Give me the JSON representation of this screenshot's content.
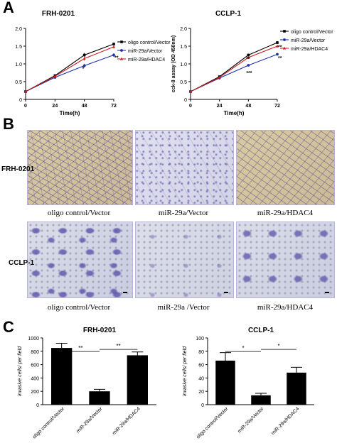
{
  "panels": {
    "a": {
      "letter": "A"
    },
    "b": {
      "letter": "B"
    },
    "c": {
      "letter": "C"
    }
  },
  "legend": {
    "items": [
      "oligo control/Vector",
      "miR-29a/Vector",
      "miR-29a/HDAC4"
    ],
    "colors": [
      "#000000",
      "#1a2fb0",
      "#c8201f"
    ]
  },
  "panel_b": {
    "row_labels": [
      "FRH-0201",
      "CCLP-1"
    ],
    "captions_row1": [
      "oligo control/Vector",
      "miR-29a/Vector",
      "miR-29a/HDAC4"
    ],
    "captions_row2": [
      "oligo control/Vector",
      "miR-29a /Vector",
      "miR-29a/HDAC4"
    ]
  },
  "chart_data": [
    {
      "type": "line",
      "title": "FRH-0201",
      "xlabel": "Time(h)",
      "ylabel": "",
      "x": [
        0,
        24,
        48,
        72
      ],
      "xticks": [
        "0",
        "24",
        "48",
        "72"
      ],
      "yticks": [
        "0",
        "0.5",
        "1.0",
        "1.5",
        "2.0"
      ],
      "ylim": [
        0,
        2.0
      ],
      "series": [
        {
          "name": "oligo control/Vector",
          "values": [
            0.22,
            0.67,
            1.25,
            1.56
          ],
          "errors": [
            0.02,
            0.04,
            0.06,
            0.04
          ]
        },
        {
          "name": "miR-29a/Vector",
          "values": [
            0.22,
            0.62,
            0.95,
            1.25
          ],
          "errors": [
            0.02,
            0.04,
            0.05,
            0.05
          ]
        },
        {
          "name": "miR-29a/HDAC4",
          "values": [
            0.22,
            0.65,
            1.15,
            1.48
          ],
          "errors": [
            0.02,
            0.04,
            0.06,
            0.05
          ]
        }
      ],
      "annotations": [
        {
          "x": 48,
          "y": 0.82,
          "text": "*"
        },
        {
          "x": 72,
          "y": 1.13,
          "text": "**"
        }
      ]
    },
    {
      "type": "line",
      "title": "CCLP-1",
      "xlabel": "Time(h)",
      "ylabel": "cck-8 assay (OD 450nm)",
      "x": [
        0,
        24,
        48,
        72
      ],
      "xticks": [
        "0",
        "24",
        "48",
        "72"
      ],
      "yticks": [
        "0",
        "0.5",
        "1.0",
        "1.5",
        "2.0"
      ],
      "ylim": [
        0,
        2.0
      ],
      "series": [
        {
          "name": "oligo control/Vector",
          "values": [
            0.22,
            0.64,
            1.25,
            1.6
          ],
          "errors": [
            0.02,
            0.03,
            0.04,
            0.04
          ]
        },
        {
          "name": "miR-29a/Vector",
          "values": [
            0.22,
            0.6,
            0.96,
            1.27
          ],
          "errors": [
            0.02,
            0.03,
            0.03,
            0.03
          ]
        },
        {
          "name": "miR-29a/HDAC4",
          "values": [
            0.22,
            0.62,
            1.18,
            1.5
          ],
          "errors": [
            0.02,
            0.03,
            0.04,
            0.04
          ]
        }
      ],
      "annotations": [
        {
          "x": 72,
          "y": 1.43,
          "text": "**"
        },
        {
          "x": 48,
          "y": 1.1,
          "text": "**"
        },
        {
          "x": 48,
          "y": 0.7,
          "text": "***"
        },
        {
          "x": 72,
          "y": 1.12,
          "text": "**"
        }
      ]
    },
    {
      "type": "bar",
      "title": "FRH-0201",
      "xlabel": "",
      "ylabel": "invasive cells/ per field",
      "categories": [
        "oligo control/Vector",
        "miR-29a/Vector",
        "miR-29a/HDAC4"
      ],
      "values": [
        850,
        200,
        740
      ],
      "errors": [
        70,
        30,
        50
      ],
      "yticks": [
        "0",
        "200",
        "400",
        "600",
        "800",
        "1000"
      ],
      "ylim": [
        0,
        1000
      ],
      "brackets": [
        {
          "from": 0,
          "to": 1,
          "text": "**"
        },
        {
          "from": 1,
          "to": 2,
          "text": "**"
        }
      ]
    },
    {
      "type": "bar",
      "title": "CCLP-1",
      "xlabel": "",
      "ylabel": "invasive cells/ per field",
      "categories": [
        "oligo control/Vector",
        "miR-29a/Vector",
        "miR-29a/HDAC4"
      ],
      "values": [
        66,
        14,
        48
      ],
      "errors": [
        12,
        3,
        8
      ],
      "yticks": [
        "0",
        "20",
        "40",
        "60",
        "80",
        "100"
      ],
      "ylim": [
        0,
        100
      ],
      "brackets": [
        {
          "from": 0,
          "to": 1,
          "text": "*"
        },
        {
          "from": 1,
          "to": 2,
          "text": "*"
        }
      ]
    }
  ]
}
